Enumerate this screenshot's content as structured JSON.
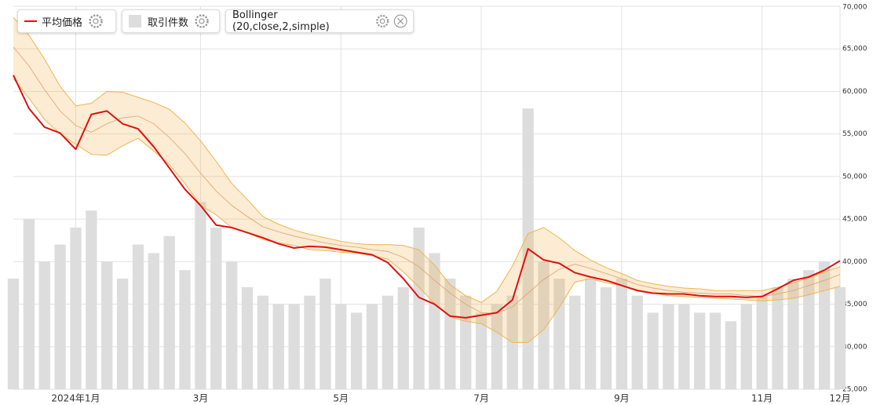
{
  "chart_data": {
    "type": "line",
    "categories": [
      null,
      null,
      null,
      null,
      "2024年1月",
      null,
      null,
      null,
      null,
      null,
      null,
      null,
      "3月",
      null,
      null,
      null,
      null,
      null,
      null,
      null,
      null,
      "5月",
      null,
      null,
      null,
      null,
      null,
      null,
      null,
      null,
      "7月",
      null,
      null,
      null,
      null,
      null,
      null,
      null,
      null,
      "9月",
      null,
      null,
      null,
      null,
      null,
      null,
      null,
      null,
      "11月",
      null,
      null,
      null,
      null,
      "12月"
    ],
    "ylim": [
      25000,
      70000
    ],
    "yticks": [
      {
        "value": 25000,
        "label": "25,000"
      },
      {
        "value": 30000,
        "label": "30,000"
      },
      {
        "value": 35000,
        "label": "35,000"
      },
      {
        "value": 40000,
        "label": "40,000"
      },
      {
        "value": 45000,
        "label": "45,000"
      },
      {
        "value": 50000,
        "label": "50,000"
      },
      {
        "value": 55000,
        "label": "55,000"
      },
      {
        "value": 60000,
        "label": "60,000"
      },
      {
        "value": 65000,
        "label": "65,000"
      },
      {
        "value": 70000,
        "label": "70,000"
      }
    ],
    "grid": true,
    "series": [
      {
        "name": "平均価格",
        "color": "#e01010",
        "values": [
          61900,
          58000,
          55800,
          55100,
          53200,
          57300,
          57700,
          56200,
          55600,
          53500,
          51000,
          48500,
          46600,
          44300,
          44000,
          43400,
          42800,
          42100,
          41600,
          41800,
          41700,
          41400,
          41100,
          40800,
          39900,
          38000,
          35800,
          35000,
          33600,
          33400,
          33700,
          34000,
          35500,
          41500,
          40200,
          39800,
          38700,
          38200,
          37800,
          37200,
          36600,
          36300,
          36200,
          36200,
          36000,
          35900,
          35900,
          35800,
          35900,
          36800,
          37800,
          38200,
          39000,
          40100
        ]
      },
      {
        "name": "取引件数",
        "color": "#dddddd",
        "values": [
          38000,
          45000,
          40000,
          42000,
          44000,
          46000,
          40000,
          38000,
          42000,
          41000,
          43000,
          39000,
          47000,
          44000,
          40000,
          37000,
          36000,
          35000,
          35000,
          36000,
          38000,
          35000,
          34000,
          35000,
          36000,
          37000,
          44000,
          41000,
          38000,
          36000,
          34000,
          35000,
          36000,
          58000,
          40000,
          38000,
          36000,
          38000,
          37000,
          38000,
          36000,
          34000,
          35000,
          35000,
          34000,
          34000,
          33000,
          35000,
          36000,
          37000,
          38000,
          39000,
          40000,
          37000
        ]
      },
      {
        "name": "Bollinger (20,close,2,simple)",
        "color": "#f0b450",
        "values": [
          65200,
          63000,
          60200,
          57700,
          56000,
          55200,
          56200,
          56900,
          57100,
          56200,
          54600,
          52700,
          50400,
          48300,
          46600,
          45300,
          44100,
          43500,
          43000,
          42600,
          42200,
          41900,
          41700,
          41400,
          41200,
          40500,
          39400,
          37800,
          36300,
          35000,
          34000,
          33900,
          34700,
          36300,
          37900,
          39100,
          39700,
          39200,
          38600,
          38000,
          37300,
          36900,
          36600,
          36400,
          36300,
          36200,
          36200,
          36000,
          35900,
          36200,
          36600,
          37200,
          37800,
          38500
        ],
        "upper": [
          68700,
          66600,
          63800,
          60600,
          58300,
          58600,
          60000,
          59900,
          59300,
          58700,
          57900,
          56300,
          54200,
          51800,
          49200,
          47300,
          45300,
          44400,
          43700,
          43200,
          42800,
          42400,
          42100,
          42000,
          42000,
          41900,
          41400,
          39600,
          37300,
          36000,
          35200,
          36500,
          39500,
          43300,
          44000,
          42800,
          41300,
          40200,
          39300,
          38600,
          37800,
          37400,
          37100,
          36900,
          36800,
          36600,
          36600,
          36600,
          36600,
          37000,
          37500,
          38100,
          38800,
          39400
        ],
        "lower": [
          61500,
          59200,
          56700,
          55000,
          53800,
          52600,
          52500,
          53600,
          54500,
          53000,
          51400,
          49200,
          46600,
          45500,
          44000,
          43400,
          42600,
          42200,
          41900,
          41400,
          41300,
          41100,
          41000,
          40700,
          40300,
          38800,
          37000,
          35100,
          33500,
          33000,
          32700,
          31700,
          30500,
          30500,
          32000,
          34600,
          37600,
          38000,
          37500,
          37200,
          36700,
          36300,
          36000,
          35900,
          35800,
          35700,
          35600,
          35500,
          35400,
          35500,
          35700,
          36100,
          36600,
          37100
        ]
      }
    ]
  }
}
